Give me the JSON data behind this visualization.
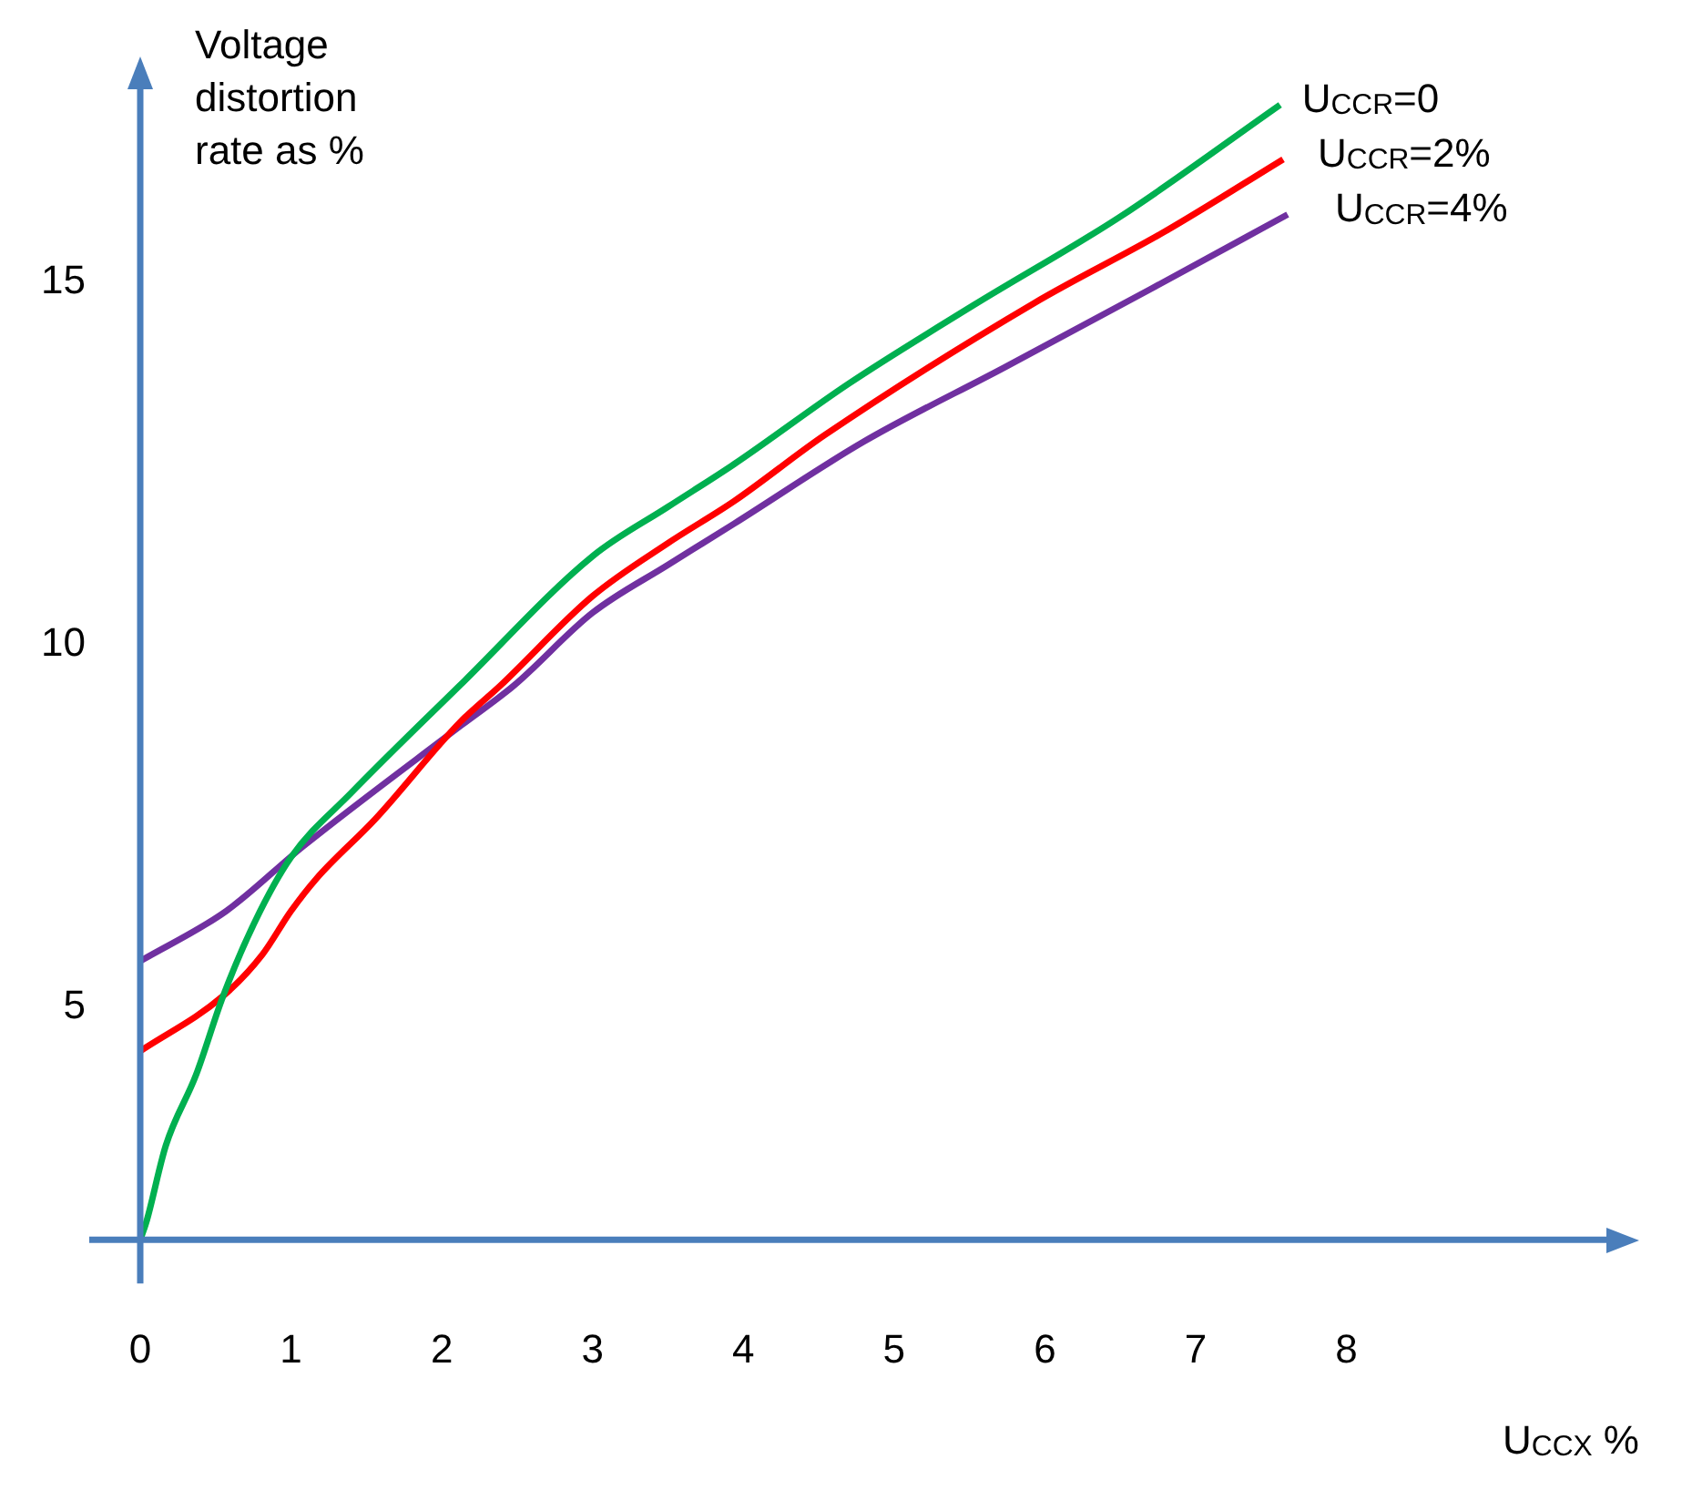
{
  "chart_data": {
    "type": "line",
    "xlabel": "U$_{CCX}$ %",
    "ylabel": "Voltage distortion rate as %",
    "xlim": [
      0,
      9.7
    ],
    "ylim": [
      1.8,
      17.6
    ],
    "xticks": [
      0,
      1,
      2,
      3,
      4,
      5,
      6,
      7,
      8
    ],
    "yticks": [
      5,
      10,
      15
    ],
    "legend": false,
    "marker": "none",
    "line_style": "solid",
    "series": [
      {
        "name": "U$_{CCR}$=0",
        "color": "#00b050",
        "x": [
          0,
          0.04,
          0.17,
          0.37,
          0.55,
          0.76,
          1.0,
          1.4,
          2.12,
          3.0,
          3.5,
          3.94,
          4.7,
          5.52,
          6.5,
          7.56
        ],
        "values": [
          1.8,
          2.04,
          3.1,
          4.07,
          5.16,
          6.18,
          7.07,
          7.96,
          9.44,
          11.22,
          11.9,
          12.49,
          13.6,
          14.67,
          15.9,
          17.44
        ]
      },
      {
        "name": "U$_{CCR}$=2%",
        "color": "#ff0000",
        "x": [
          0,
          0.55,
          0.81,
          1.0,
          1.17,
          1.56,
          2.12,
          2.39,
          3.0,
          3.5,
          3.94,
          4.54,
          5.93,
          6.8,
          7.58
        ],
        "values": [
          4.4,
          5.16,
          5.73,
          6.33,
          6.78,
          7.6,
          8.93,
          9.44,
          10.67,
          11.4,
          11.98,
          12.89,
          14.71,
          15.7,
          16.69
        ]
      },
      {
        "name": "U$_{CCR}$=4%",
        "color": "#7030a0",
        "x": [
          0,
          0.57,
          1.08,
          2.13,
          2.48,
          3.0,
          3.5,
          3.94,
          4.8,
          5.73,
          6.7,
          7.61
        ],
        "values": [
          5.64,
          6.33,
          7.22,
          8.89,
          9.44,
          10.44,
          11.1,
          11.67,
          12.8,
          13.82,
          14.9,
          15.93
        ]
      }
    ]
  }
}
